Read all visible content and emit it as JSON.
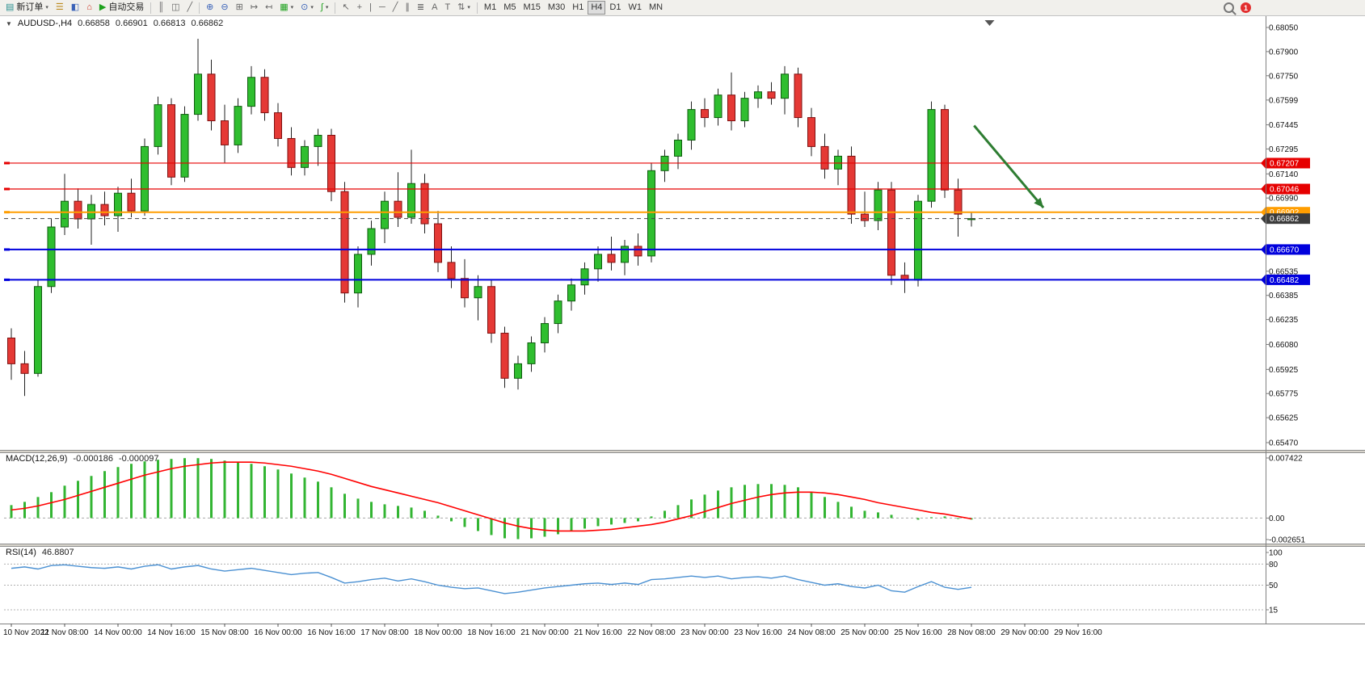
{
  "toolbar": {
    "new_order_label": "新订单",
    "autotrading_label": "自动交易",
    "timeframes": [
      "M1",
      "M5",
      "M15",
      "M30",
      "H1",
      "H4",
      "D1",
      "W1",
      "MN"
    ],
    "active_timeframe": "H4",
    "notification_count": "1",
    "icons": {
      "new_order": "▤",
      "market_watch": "☰",
      "data_window": "◧",
      "navigator": "⌂",
      "autotrading": "▶",
      "bar_chart": "║",
      "candlestick": "◫",
      "line_chart": "╱",
      "zoom_in": "⊕",
      "zoom_out": "⊖",
      "tile_windows": "⊞",
      "auto_scroll": "↦",
      "chart_shift": "↤",
      "new_chart": "▦",
      "profiles": "⊙",
      "indicators": "∫",
      "cursor": "↖",
      "crosshair": "+",
      "vertical_line": "|",
      "horizontal_line": "─",
      "trendline": "╱",
      "channel": "∥",
      "fibonacci": "≣",
      "text": "A",
      "text_label": "T",
      "arrows": "⇅",
      "caret": "▾"
    }
  },
  "chart": {
    "collapse_arrow": "▼",
    "symbol_title": "AUDUSD-,H4",
    "open": "0.66858",
    "high": "0.66901",
    "low": "0.66813",
    "close": "0.66862"
  },
  "macd_header": {
    "title": "MACD(12,26,9)",
    "value_main": "-0.000186",
    "value_signal": "-0.000097"
  },
  "rsi_header": {
    "title": "RSI(14)",
    "value": "46.8807"
  },
  "chart_data": {
    "type": "candlestick",
    "symbol": "AUDUSD-",
    "timeframe": "H4",
    "current": {
      "open": 0.66858,
      "high": 0.66901,
      "low": 0.66813,
      "close": 0.66862
    },
    "y_axis": {
      "max": 0.6805,
      "min": 0.6547,
      "ticks": [
        "0.68050",
        "0.67900",
        "0.67750",
        "0.67599",
        "0.67445",
        "0.67295",
        "0.67140",
        "0.66990",
        "0.66535",
        "0.66385",
        "0.66235",
        "0.66080",
        "0.65925",
        "0.65775",
        "0.65625",
        "0.65470"
      ]
    },
    "x_labels": [
      "10 Nov 2022",
      "11 Nov 08:00",
      "14 Nov 00:00",
      "14 Nov 16:00",
      "15 Nov 08:00",
      "16 Nov 00:00",
      "16 Nov 16:00",
      "17 Nov 08:00",
      "18 Nov 00:00",
      "18 Nov 16:00",
      "21 Nov 00:00",
      "21 Nov 16:00",
      "22 Nov 08:00",
      "23 Nov 00:00",
      "23 Nov 16:00",
      "24 Nov 08:00",
      "25 Nov 00:00",
      "25 Nov 16:00",
      "28 Nov 08:00",
      "29 Nov 00:00",
      "29 Nov 16:00"
    ],
    "candles": [
      [
        0.6612,
        0.6618,
        0.6586,
        0.6596
      ],
      [
        0.6596,
        0.6604,
        0.6576,
        0.659
      ],
      [
        0.659,
        0.6648,
        0.6588,
        0.6644
      ],
      [
        0.6644,
        0.6686,
        0.664,
        0.6681
      ],
      [
        0.6681,
        0.6714,
        0.6676,
        0.6697
      ],
      [
        0.6697,
        0.6705,
        0.668,
        0.6686
      ],
      [
        0.6686,
        0.6701,
        0.667,
        0.6695
      ],
      [
        0.6695,
        0.6703,
        0.6682,
        0.6688
      ],
      [
        0.6688,
        0.6706,
        0.6678,
        0.6702
      ],
      [
        0.6702,
        0.6711,
        0.6687,
        0.6691
      ],
      [
        0.6691,
        0.6736,
        0.6688,
        0.6731
      ],
      [
        0.6731,
        0.6762,
        0.6726,
        0.6757
      ],
      [
        0.6757,
        0.6761,
        0.6707,
        0.6712
      ],
      [
        0.6712,
        0.6756,
        0.6709,
        0.6751
      ],
      [
        0.6751,
        0.6798,
        0.6747,
        0.6776
      ],
      [
        0.6776,
        0.6785,
        0.6741,
        0.6747
      ],
      [
        0.6747,
        0.6757,
        0.6721,
        0.6732
      ],
      [
        0.6732,
        0.6761,
        0.6727,
        0.6756
      ],
      [
        0.6756,
        0.6781,
        0.6751,
        0.6774
      ],
      [
        0.6774,
        0.6779,
        0.6747,
        0.6752
      ],
      [
        0.6752,
        0.6758,
        0.6731,
        0.6736
      ],
      [
        0.6736,
        0.6743,
        0.6713,
        0.6718
      ],
      [
        0.6718,
        0.6735,
        0.6713,
        0.6731
      ],
      [
        0.6731,
        0.6742,
        0.6719,
        0.6738
      ],
      [
        0.6738,
        0.6742,
        0.6697,
        0.6703
      ],
      [
        0.6703,
        0.6709,
        0.6634,
        0.664
      ],
      [
        0.664,
        0.6669,
        0.6631,
        0.6664
      ],
      [
        0.6664,
        0.6685,
        0.6657,
        0.668
      ],
      [
        0.668,
        0.6703,
        0.6671,
        0.6697
      ],
      [
        0.6697,
        0.6715,
        0.6681,
        0.6687
      ],
      [
        0.6687,
        0.6729,
        0.6683,
        0.6708
      ],
      [
        0.6708,
        0.6714,
        0.6677,
        0.6683
      ],
      [
        0.6683,
        0.6691,
        0.6653,
        0.6659
      ],
      [
        0.6659,
        0.6669,
        0.6643,
        0.6649
      ],
      [
        0.6649,
        0.6661,
        0.6631,
        0.6637
      ],
      [
        0.6637,
        0.6651,
        0.6623,
        0.6644
      ],
      [
        0.6644,
        0.6648,
        0.6609,
        0.6615
      ],
      [
        0.6615,
        0.6619,
        0.6581,
        0.6587
      ],
      [
        0.6587,
        0.6601,
        0.658,
        0.6596
      ],
      [
        0.6596,
        0.6613,
        0.6591,
        0.6609
      ],
      [
        0.6609,
        0.6625,
        0.6603,
        0.6621
      ],
      [
        0.6621,
        0.6639,
        0.6615,
        0.6635
      ],
      [
        0.6635,
        0.6649,
        0.6629,
        0.6645
      ],
      [
        0.6645,
        0.6659,
        0.6639,
        0.6655
      ],
      [
        0.6655,
        0.6669,
        0.6647,
        0.6664
      ],
      [
        0.6664,
        0.6675,
        0.6654,
        0.6659
      ],
      [
        0.6659,
        0.6673,
        0.6651,
        0.6669
      ],
      [
        0.6669,
        0.6677,
        0.6657,
        0.6663
      ],
      [
        0.6663,
        0.6721,
        0.6659,
        0.6716
      ],
      [
        0.6716,
        0.6729,
        0.6709,
        0.6725
      ],
      [
        0.6725,
        0.6739,
        0.6717,
        0.6735
      ],
      [
        0.6735,
        0.6759,
        0.6729,
        0.6754
      ],
      [
        0.6754,
        0.6761,
        0.6743,
        0.6749
      ],
      [
        0.6749,
        0.6767,
        0.6744,
        0.6763
      ],
      [
        0.6763,
        0.6777,
        0.6741,
        0.6747
      ],
      [
        0.6747,
        0.6765,
        0.6743,
        0.6761
      ],
      [
        0.6761,
        0.6769,
        0.6755,
        0.6765
      ],
      [
        0.6765,
        0.6771,
        0.6757,
        0.6761
      ],
      [
        0.6761,
        0.6781,
        0.6751,
        0.6776
      ],
      [
        0.6776,
        0.678,
        0.6743,
        0.6749
      ],
      [
        0.6749,
        0.6755,
        0.6725,
        0.6731
      ],
      [
        0.6731,
        0.6739,
        0.6711,
        0.6717
      ],
      [
        0.6717,
        0.6729,
        0.6707,
        0.6725
      ],
      [
        0.6725,
        0.6731,
        0.6683,
        0.6689
      ],
      [
        0.6689,
        0.6703,
        0.6681,
        0.6685
      ],
      [
        0.6685,
        0.6709,
        0.6679,
        0.6704
      ],
      [
        0.6704,
        0.6709,
        0.6645,
        0.6651
      ],
      [
        0.6651,
        0.6659,
        0.664,
        0.6648
      ],
      [
        0.6648,
        0.6701,
        0.6644,
        0.6697
      ],
      [
        0.6697,
        0.6759,
        0.6693,
        0.6754
      ],
      [
        0.6754,
        0.6757,
        0.6699,
        0.6704
      ],
      [
        0.6704,
        0.6711,
        0.6675,
        0.6689
      ],
      [
        0.66858,
        0.66901,
        0.66813,
        0.66862
      ]
    ],
    "hlines": [
      {
        "price": 0.67207,
        "label": "0.67207",
        "color": "#e60000",
        "width": 1.2
      },
      {
        "price": 0.67046,
        "label": "0.67046",
        "color": "#e60000",
        "width": 1.2
      },
      {
        "price": 0.66902,
        "label": "0.66902",
        "color": "#ff9d00",
        "width": 2
      },
      {
        "price": 0.6667,
        "label": "0.66670",
        "color": "#0000dd",
        "width": 2
      },
      {
        "price": 0.66482,
        "label": "0.66482",
        "color": "#0000dd",
        "width": 2
      }
    ],
    "price_line": {
      "price": 0.66862,
      "label": "0.66862",
      "color": "#3c3c3c"
    },
    "trend_arrow": {
      "t1": 72.2,
      "p1": 0.6744,
      "t2": 77.4,
      "p2": 0.6693,
      "color": "#2e7d32"
    },
    "colors": {
      "bull": "#2fbe2f",
      "bull_border": "#0e5c0e",
      "bear": "#e53935",
      "bear_border": "#7f1010",
      "wick": "#222222",
      "macd_hist": "#33b533",
      "macd_signal": "#ff0000",
      "rsi_line": "#4a90d2"
    },
    "macd": {
      "params": "12,26,9",
      "scale_max": 0.007422,
      "scale_min": -0.002651,
      "axis_labels": [
        {
          "v": 0.007422,
          "t": "0.007422"
        },
        {
          "v": 0,
          "t": "0.00"
        },
        {
          "v": -0.002651,
          "t": "-0.002651"
        }
      ],
      "hist": [
        0.0016,
        0.002,
        0.0026,
        0.0032,
        0.004,
        0.0046,
        0.0052,
        0.0058,
        0.0063,
        0.0067,
        0.007,
        0.0072,
        0.0073,
        0.0074,
        0.0074,
        0.0073,
        0.0071,
        0.0069,
        0.0067,
        0.0064,
        0.006,
        0.0055,
        0.005,
        0.0045,
        0.0038,
        0.003,
        0.0024,
        0.002,
        0.0017,
        0.0015,
        0.0013,
        0.0009,
        0.0003,
        -0.0004,
        -0.0011,
        -0.0016,
        -0.0021,
        -0.0025,
        -0.0026,
        -0.0025,
        -0.0023,
        -0.002,
        -0.0016,
        -0.0013,
        -0.001,
        -0.0008,
        -0.0006,
        -0.0004,
        0.0002,
        0.0009,
        0.0016,
        0.0023,
        0.0029,
        0.0034,
        0.0038,
        0.0041,
        0.0042,
        0.0042,
        0.0041,
        0.0038,
        0.0032,
        0.0026,
        0.002,
        0.0014,
        0.0009,
        0.0007,
        0.0004,
        0.0,
        -0.0002,
        0.0001,
        0.0002,
        -0.0001,
        -0.000186
      ],
      "signal": [
        0.001,
        0.0012,
        0.0015,
        0.0019,
        0.0023,
        0.0028,
        0.0033,
        0.0038,
        0.0043,
        0.0048,
        0.0053,
        0.0057,
        0.0061,
        0.0064,
        0.0066,
        0.0068,
        0.0069,
        0.0069,
        0.0069,
        0.0068,
        0.0066,
        0.0064,
        0.0061,
        0.0058,
        0.0054,
        0.0049,
        0.0044,
        0.0039,
        0.0035,
        0.0031,
        0.0027,
        0.0023,
        0.0019,
        0.0014,
        0.0009,
        0.0004,
        -0.0001,
        -0.0006,
        -0.001,
        -0.0013,
        -0.0015,
        -0.0016,
        -0.0016,
        -0.0016,
        -0.0015,
        -0.0014,
        -0.0012,
        -0.001,
        -0.0008,
        -0.0005,
        -0.0001,
        0.0003,
        0.0008,
        0.0013,
        0.0018,
        0.0022,
        0.0026,
        0.0029,
        0.0031,
        0.0032,
        0.0032,
        0.0031,
        0.0029,
        0.0026,
        0.0023,
        0.0019,
        0.0016,
        0.0013,
        0.001,
        0.0007,
        0.0005,
        0.0002,
        -9.7e-05
      ]
    },
    "rsi": {
      "period": 14,
      "scale_max": 100,
      "scale_min": 0,
      "levels": [
        80,
        50,
        15
      ],
      "axis_labels": [
        {
          "v": 100,
          "t": "100"
        },
        {
          "v": 80,
          "t": "80"
        },
        {
          "v": 50,
          "t": "50"
        },
        {
          "v": 15,
          "t": "15"
        }
      ],
      "values": [
        74,
        76,
        73,
        78,
        79,
        77,
        75,
        74,
        76,
        73,
        77,
        79,
        73,
        76,
        78,
        73,
        70,
        72,
        74,
        71,
        68,
        65,
        67,
        68,
        61,
        53,
        55,
        58,
        60,
        56,
        59,
        55,
        50,
        47,
        45,
        46,
        42,
        38,
        40,
        43,
        46,
        48,
        50,
        52,
        53,
        51,
        53,
        51,
        58,
        59,
        61,
        63,
        61,
        63,
        59,
        61,
        62,
        60,
        63,
        58,
        54,
        50,
        52,
        48,
        46,
        50,
        42,
        40,
        48,
        55,
        47,
        44,
        46.8807
      ]
    }
  }
}
